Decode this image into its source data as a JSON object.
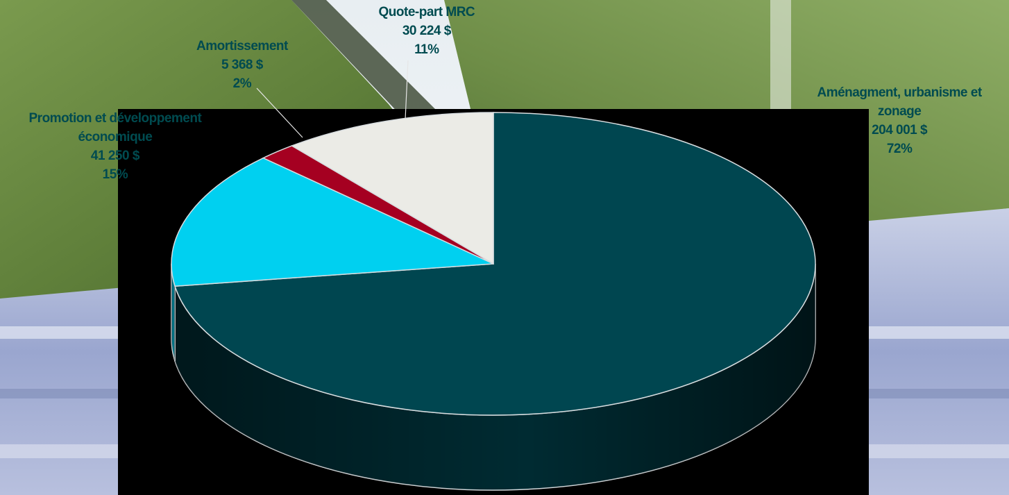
{
  "colors": {
    "label": "#004b50",
    "plot_area": "#000000",
    "edge": "#d8dde0"
  },
  "chart_data": {
    "type": "pie",
    "style": "3d",
    "start_angle_deg": 90,
    "direction": "clockwise",
    "slices": [
      {
        "name": "Aménagment, urbanisme et zonage",
        "lines": [
          "Aménagment, urbanisme et",
          "zonage"
        ],
        "value_text": "204 001 $",
        "value": 204001,
        "percent_text": "72%",
        "color": "#004650"
      },
      {
        "name": "Promotion et développement économique",
        "lines": [
          "Promotion et développement",
          "économique"
        ],
        "value_text": "41 250 $",
        "value": 41250,
        "percent_text": "15%",
        "color": "#00d0f0"
      },
      {
        "name": "Amortissement",
        "lines": [
          "Amortissement"
        ],
        "value_text": "5 368 $",
        "value": 5368,
        "percent_text": "2%",
        "color": "#a50021"
      },
      {
        "name": "Quote-part MRC",
        "lines": [
          "Quote-part MRC"
        ],
        "value_text": "30 224 $",
        "value": 30224,
        "percent_text": "11%",
        "color": "#ebebe6"
      }
    ]
  }
}
